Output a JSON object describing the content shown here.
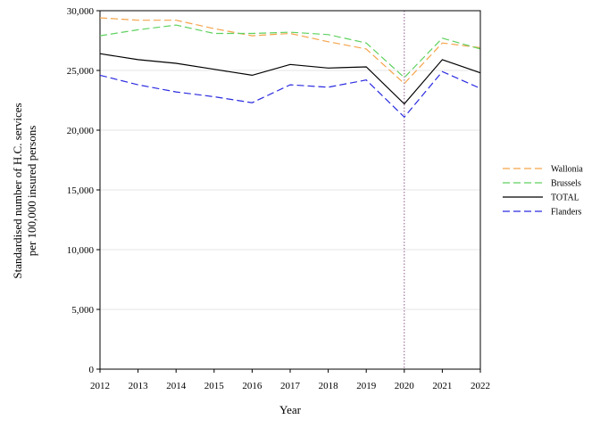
{
  "chart_data": {
    "type": "line",
    "xlabel": "Year",
    "ylabel_lines": [
      "Standardised number of H.C. services",
      "per 100,000 insured persons"
    ],
    "x": [
      2012,
      2013,
      2014,
      2015,
      2016,
      2017,
      2018,
      2019,
      2020,
      2021,
      2022
    ],
    "x_tick_labels": [
      "2012",
      "2013",
      "2014",
      "2015",
      "2016",
      "2017",
      "2018",
      "2019",
      "2020",
      "2021",
      "2022"
    ],
    "ylim": [
      0,
      30000
    ],
    "y_ticks": [
      0,
      5000,
      10000,
      15000,
      20000,
      25000,
      30000
    ],
    "y_tick_labels": [
      "0",
      "5,000",
      "10,000",
      "15,000",
      "20,000",
      "25,000",
      "30,000"
    ],
    "grid": "horizontal",
    "reference_line_x": 2020,
    "legend_position": "right",
    "series": [
      {
        "name": "Wallonia",
        "color": "#f5a34a",
        "style": "dashed",
        "values": [
          29400,
          29200,
          29200,
          28500,
          27900,
          28100,
          27400,
          26800,
          23900,
          27300,
          26900
        ]
      },
      {
        "name": "Brussels",
        "color": "#5ed15e",
        "style": "dashed",
        "values": [
          27900,
          28400,
          28800,
          28100,
          28100,
          28200,
          28000,
          27300,
          24400,
          27700,
          26800
        ]
      },
      {
        "name": "TOTAL",
        "color": "#000000",
        "style": "solid",
        "values": [
          26400,
          25900,
          25600,
          25100,
          24600,
          25500,
          25200,
          25300,
          22200,
          25900,
          24800
        ]
      },
      {
        "name": "Flanders",
        "color": "#2a2ae0",
        "style": "dashed",
        "values": [
          24600,
          23800,
          23200,
          22800,
          22300,
          23800,
          23600,
          24200,
          21100,
          24900,
          23500
        ]
      }
    ]
  }
}
